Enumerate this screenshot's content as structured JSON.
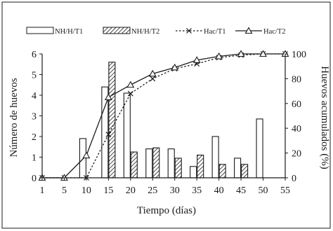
{
  "chart_data": {
    "type": "bar",
    "x": [
      1,
      5,
      10,
      15,
      20,
      25,
      30,
      35,
      40,
      45,
      50,
      55
    ],
    "xlabel": "Tiempo (días)",
    "ylabel": "Número de huevos",
    "y2label": "Huevos acumulados (%)",
    "ylim": [
      0,
      6
    ],
    "y2lim": [
      0,
      100
    ],
    "yticks": [
      0,
      1,
      2,
      3,
      4,
      5,
      6
    ],
    "y2ticks": [
      0,
      20,
      40,
      60,
      80,
      100
    ],
    "grid": false,
    "legend_position": "top",
    "series": [
      {
        "name": "NH/H/T1",
        "type": "bar",
        "axis": "left",
        "pattern": "open",
        "values": [
          0,
          0,
          1.9,
          4.4,
          4.1,
          1.4,
          1.4,
          0.55,
          2.0,
          0.95,
          2.85,
          0
        ]
      },
      {
        "name": "NH/H/T2",
        "type": "bar",
        "axis": "left",
        "pattern": "hatched",
        "values": [
          0,
          0,
          0,
          5.6,
          1.25,
          1.45,
          0.95,
          1.1,
          0.65,
          0.65,
          0,
          0
        ]
      },
      {
        "name": "Hac/T1",
        "type": "line",
        "axis": "right",
        "style": "dotted",
        "marker": "x",
        "values": [
          0,
          0,
          0,
          35,
          68,
          80,
          88,
          92,
          97,
          99,
          100,
          100
        ]
      },
      {
        "name": "Hac/T2",
        "type": "line",
        "axis": "right",
        "style": "solid",
        "marker": "triangle",
        "values": [
          0,
          0,
          18,
          65,
          75,
          84,
          89,
          95,
          98,
          100,
          100,
          100
        ]
      }
    ]
  },
  "colors": {
    "ink": "#1a1a1a",
    "background": "#ffffff"
  }
}
